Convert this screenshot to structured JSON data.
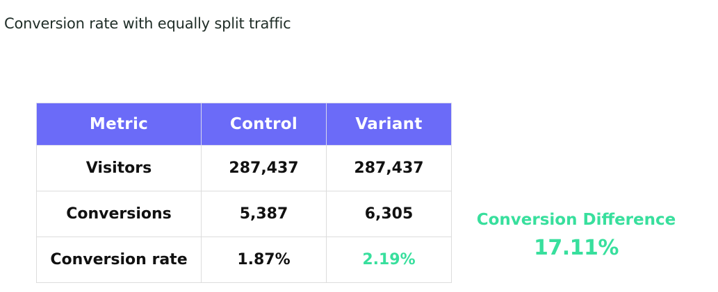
{
  "title": "Conversion rate with equally split traffic",
  "colors": {
    "header_bg": "#6b6bf8",
    "accent_green": "#38df9d",
    "border": "#dcdcdc",
    "text": "#111111"
  },
  "table": {
    "headers": [
      "Metric",
      "Control",
      "Variant"
    ],
    "rows": [
      {
        "metric": "Visitors",
        "control": "287,437",
        "variant": "287,437"
      },
      {
        "metric": "Conversions",
        "control": "5,387",
        "variant": "6,305"
      },
      {
        "metric": "Conversion rate",
        "control": "1.87%",
        "variant": "2.19%"
      }
    ]
  },
  "difference": {
    "label": "Conversion Difference",
    "value": "17.11%"
  }
}
